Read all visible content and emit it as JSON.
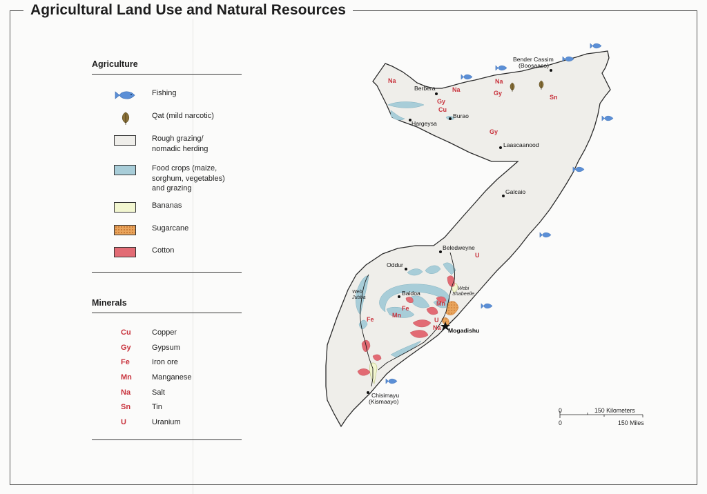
{
  "title": "Agricultural Land Use and Natural Resources",
  "legend": {
    "agriculture_heading": "Agriculture",
    "agriculture_items": [
      {
        "label": "Fishing",
        "symbol": "fish-icon",
        "color": "#5b8fd6"
      },
      {
        "label": "Qat (mild narcotic)",
        "symbol": "qat-leaf-icon",
        "color": "#8a7138"
      },
      {
        "label": "Rough grazing/\nnomadic herding",
        "symbol": "swatch",
        "color": "#efeeea"
      },
      {
        "label": "Food crops (maize,\nsorghum, vegetables)\nand grazing",
        "symbol": "swatch",
        "color": "#a8cdd8"
      },
      {
        "label": "Bananas",
        "symbol": "swatch",
        "color": "#f2f6d0"
      },
      {
        "label": "Sugarcane",
        "symbol": "swatch",
        "color": "#e8a45c"
      },
      {
        "label": "Cotton",
        "symbol": "swatch",
        "color": "#e26b74"
      }
    ],
    "minerals_heading": "Minerals",
    "minerals": [
      {
        "code": "Cu",
        "label": "Copper"
      },
      {
        "code": "Gy",
        "label": "Gypsum"
      },
      {
        "code": "Fe",
        "label": "Iron ore"
      },
      {
        "code": "Mn",
        "label": "Manganese"
      },
      {
        "code": "Na",
        "label": "Salt"
      },
      {
        "code": "Sn",
        "label": "Tin"
      },
      {
        "code": "U",
        "label": "Uranium"
      }
    ]
  },
  "map": {
    "cities": [
      {
        "name": "Bender Cassim"
      },
      {
        "name": "(Boosaaso)"
      },
      {
        "name": "Berbera"
      },
      {
        "name": "Burao"
      },
      {
        "name": "Hargeysa"
      },
      {
        "name": "Laascaanood"
      },
      {
        "name": "Galcaio"
      },
      {
        "name": "Beledweyne"
      },
      {
        "name": "Oddur"
      },
      {
        "name": "Baidoa"
      },
      {
        "name": "Mogadishu"
      },
      {
        "name": "Chisimayu"
      },
      {
        "name": "(Kismaayo)"
      }
    ],
    "rivers": [
      {
        "name": "Webi",
        "sub": "Jubba"
      },
      {
        "name": "Webi",
        "sub": "Shabeelle"
      }
    ],
    "mineral_markers": [
      "Na",
      "Na",
      "Na",
      "Gy",
      "Gy",
      "Cu",
      "Sn",
      "Gy",
      "U",
      "Mn",
      "Fe",
      "Mn",
      "Fe",
      "U",
      "Na"
    ],
    "scale": {
      "km_label": "150 Kilometers",
      "mi_label": "150 Miles",
      "zero": "0"
    }
  }
}
